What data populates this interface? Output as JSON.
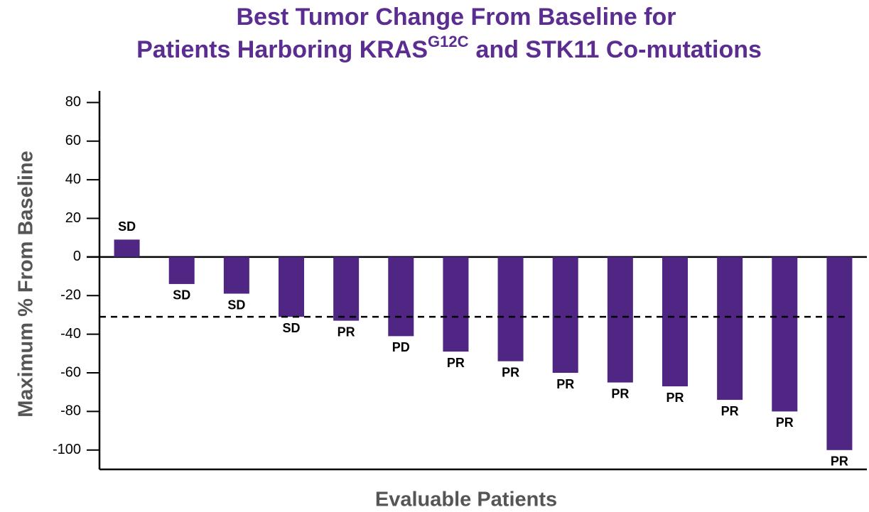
{
  "chart_data": {
    "type": "bar",
    "title": {
      "line1": "Best Tumor Change From Baseline for",
      "line2_start": "Patients Harboring KRAS",
      "line2_superscript": "G12C",
      "line2_end": "and STK11 Co-mutations"
    },
    "xlabel": "Evaluable Patients",
    "ylabel": "Maximum % From Baseline",
    "categories": [
      null,
      null,
      null,
      null,
      null,
      null,
      null,
      null,
      null,
      null,
      null,
      null,
      null,
      null
    ],
    "values": [
      9,
      -14,
      -19,
      -31,
      -33,
      -41,
      -49,
      -54,
      -60,
      -65,
      -67,
      -74,
      -80,
      -100
    ],
    "value_labels": [
      "SD",
      "SD",
      "SD",
      "SD",
      "PR",
      "PD",
      "PR",
      "PR",
      "PR",
      "PR",
      "PR",
      "PR",
      "PR",
      "PR"
    ],
    "color": "#4f2683",
    "reference_line": -31,
    "ylim": [
      -110,
      86
    ],
    "yticks": [
      -100,
      -80,
      -60,
      -40,
      -20,
      0,
      20,
      40,
      60,
      80
    ]
  }
}
